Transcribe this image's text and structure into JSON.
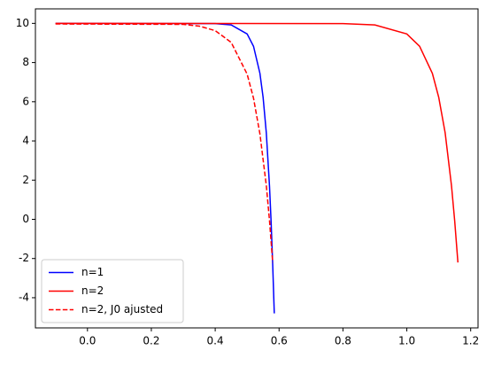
{
  "chart_data": {
    "type": "line",
    "series": [
      {
        "name": "n=1",
        "color": "#0000ff",
        "dash": false,
        "x": [
          -0.1,
          0.4,
          0.45,
          0.5,
          0.52,
          0.54,
          0.55,
          0.56,
          0.57,
          0.575,
          0.58,
          0.585
        ],
        "values": [
          10,
          9.99,
          9.92,
          9.46,
          8.83,
          7.45,
          6.22,
          4.42,
          1.7,
          -0.1,
          -2.3,
          -4.8
        ]
      },
      {
        "name": "n=2",
        "color": "#ff0000",
        "dash": false,
        "x": [
          -0.1,
          0.8,
          0.9,
          1.0,
          1.04,
          1.08,
          1.1,
          1.12,
          1.14,
          1.15,
          1.16
        ],
        "values": [
          10,
          9.99,
          9.92,
          9.46,
          8.83,
          7.45,
          6.22,
          4.42,
          1.7,
          -0.1,
          -2.2
        ]
      },
      {
        "name": "n=2, J0 ajusted",
        "color": "#ff0000",
        "dash": true,
        "x": [
          -0.1,
          0.3,
          0.35,
          0.4,
          0.45,
          0.5,
          0.52,
          0.54,
          0.56,
          0.57,
          0.58
        ],
        "values": [
          9.97,
          9.95,
          9.86,
          9.63,
          9.03,
          7.41,
          6.18,
          4.36,
          1.73,
          -0.06,
          -2.2
        ]
      }
    ],
    "xlim": [
      -0.163,
      1.223
    ],
    "ylim": [
      -5.54,
      10.74
    ],
    "xticks": [
      {
        "value": 0,
        "label": "0.0"
      },
      0.2,
      0.4,
      0.6,
      0.8,
      {
        "value": 1,
        "label": "1.0"
      },
      1.2
    ],
    "yticks": [
      -4,
      -2,
      0,
      2,
      4,
      6,
      8,
      10
    ],
    "legend": "lower left"
  }
}
